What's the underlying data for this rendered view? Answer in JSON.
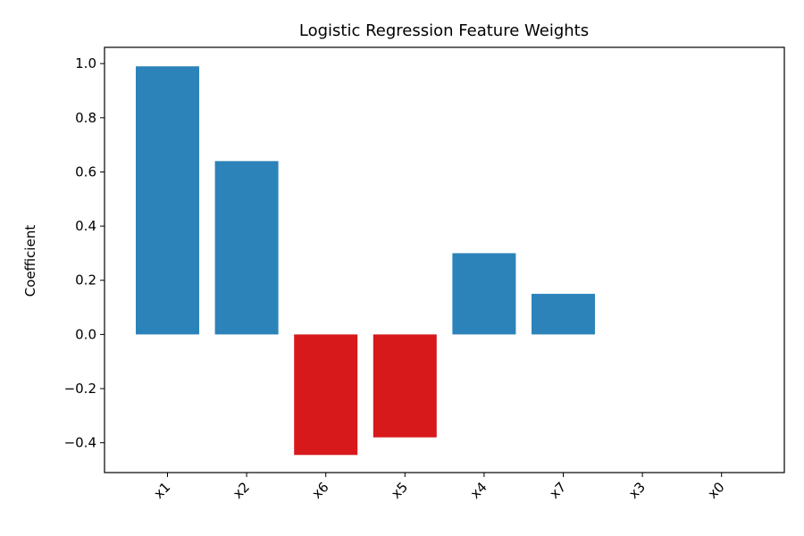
{
  "chart_data": {
    "type": "bar",
    "title": "Logistic Regression Feature Weights",
    "xlabel": "",
    "ylabel": "Coefficient",
    "categories": [
      "x1",
      "x2",
      "x6",
      "x5",
      "x4",
      "x7",
      "x3",
      "x0"
    ],
    "values": [
      0.99,
      0.64,
      -0.445,
      -0.38,
      0.3,
      0.15,
      0.0,
      0.0
    ],
    "ylim": [
      -0.51,
      1.06
    ],
    "yticks": [
      -0.4,
      -0.2,
      0.0,
      0.2,
      0.4,
      0.6,
      0.8,
      1.0
    ],
    "ytick_labels": [
      "−0.4",
      "−0.2",
      "0.0",
      "0.2",
      "0.4",
      "0.6",
      "0.8",
      "1.0"
    ],
    "grid": false,
    "legend": "none",
    "colors": {
      "positive": "#2c83b9",
      "negative": "#d7191c"
    }
  }
}
